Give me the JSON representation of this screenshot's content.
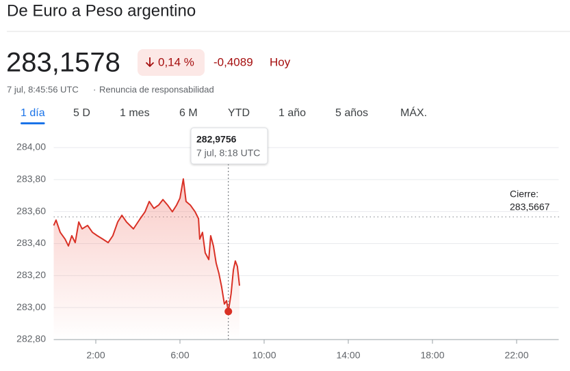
{
  "header": {
    "title": "De Euro a Peso argentino",
    "price": "283,1578",
    "change_pct": "0,14 %",
    "change_abs": "-0,4089",
    "period": "Hoy",
    "timestamp": "7 jul, 8:45:56 UTC",
    "separator": "·",
    "disclaimer": "Renuncia de responsabilidad"
  },
  "tabs": {
    "items": [
      "1 día",
      "5 D",
      "1 mes",
      "6 M",
      "YTD",
      "1 año",
      "5 años",
      "MÁX."
    ],
    "selected": 0
  },
  "chart_data": {
    "type": "line",
    "x": [
      0,
      0.11,
      0.31,
      0.54,
      0.7,
      0.86,
      1.02,
      1.19,
      1.35,
      1.61,
      1.84,
      2.07,
      2.33,
      2.59,
      2.81,
      3.04,
      3.24,
      3.46,
      3.79,
      4.11,
      4.34,
      4.54,
      4.76,
      4.99,
      5.19,
      5.41,
      5.64,
      5.84,
      6.0,
      6.16,
      6.29,
      6.49,
      6.72,
      6.88,
      6.94,
      7.07,
      7.2,
      7.37,
      7.46,
      7.59,
      7.72,
      7.85,
      7.98,
      8.11,
      8.21,
      8.3,
      8.43,
      8.54,
      8.63,
      8.73,
      8.83
    ],
    "series": [
      {
        "color": "#d93025",
        "values": [
          283.513,
          283.547,
          283.47,
          283.428,
          283.385,
          283.449,
          283.406,
          283.535,
          283.492,
          283.513,
          283.47,
          283.449,
          283.428,
          283.406,
          283.449,
          283.535,
          283.577,
          283.535,
          283.492,
          283.556,
          283.599,
          283.663,
          283.62,
          283.641,
          283.675,
          283.641,
          283.599,
          283.641,
          283.684,
          283.804,
          283.663,
          283.641,
          283.599,
          283.556,
          283.428,
          283.47,
          283.342,
          283.3,
          283.449,
          283.385,
          283.278,
          283.214,
          283.129,
          283.022,
          283.043,
          282.9756,
          283.086,
          283.236,
          283.291,
          283.257,
          283.137
        ]
      }
    ],
    "xlim": [
      0,
      24
    ],
    "xticks": [
      {
        "value": 2,
        "label": "2:00"
      },
      {
        "value": 6,
        "label": "6:00"
      },
      {
        "value": 10,
        "label": "10:00"
      },
      {
        "value": 14,
        "label": "14:00"
      },
      {
        "value": 18,
        "label": "18:00"
      },
      {
        "value": 22,
        "label": "22:00"
      }
    ],
    "ylim": [
      282.8,
      284.0
    ],
    "yticks": [
      {
        "value": 282.8,
        "label": "282,80"
      },
      {
        "value": 283.0,
        "label": "283,00"
      },
      {
        "value": 283.2,
        "label": "283,20"
      },
      {
        "value": 283.4,
        "label": "283,40"
      },
      {
        "value": 283.6,
        "label": "283,60"
      },
      {
        "value": 283.8,
        "label": "283,80"
      },
      {
        "value": 284.0,
        "label": "284,00"
      }
    ],
    "grid": true,
    "close": {
      "label": "Cierre:",
      "value": 283.5667,
      "value_label": "283,5667"
    },
    "tooltip": {
      "index": 45,
      "value_label": "282,9756",
      "time": "7 jul, 8:18 UTC"
    }
  }
}
